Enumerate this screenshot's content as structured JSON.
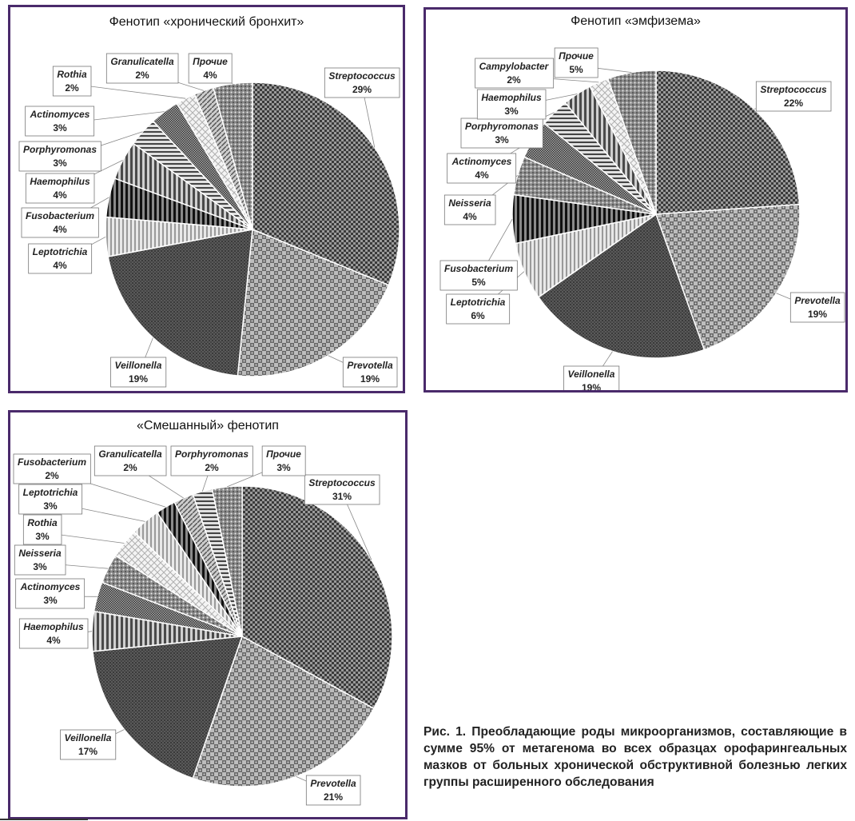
{
  "chart_data": [
    {
      "type": "pie",
      "title": "Фенотип «хронический бронхит»",
      "unit": "%",
      "slices": [
        {
          "label": "Streptococcus",
          "value": 29,
          "text": "29%"
        },
        {
          "label": "Prevotella",
          "value": 19,
          "text": "19%"
        },
        {
          "label": "Veillonella",
          "value": 19,
          "text": "19%"
        },
        {
          "label": "Leptotrichia",
          "value": 4,
          "text": "4%"
        },
        {
          "label": "Fusobacterium",
          "value": 4,
          "text": "4%"
        },
        {
          "label": "Haemophilus",
          "value": 4,
          "text": "4%"
        },
        {
          "label": "Porphyromonas",
          "value": 3,
          "text": "3%"
        },
        {
          "label": "Actinomyces",
          "value": 3,
          "text": "3%"
        },
        {
          "label": "Rothia",
          "value": 2,
          "text": "2%"
        },
        {
          "label": "Granulicatella",
          "value": 2,
          "text": "2%"
        },
        {
          "label": "Прочие",
          "value": 4,
          "text": "4%"
        }
      ]
    },
    {
      "type": "pie",
      "title": "Фенотип «эмфизема»",
      "unit": "%",
      "slices": [
        {
          "label": "Streptococcus",
          "value": 22,
          "text": "22%"
        },
        {
          "label": "Prevotella",
          "value": 19,
          "text": "19%"
        },
        {
          "label": "Veillonella",
          "value": 19,
          "text": "19%"
        },
        {
          "label": "Leptotrichia",
          "value": 6,
          "text": "6%"
        },
        {
          "label": "Fusobacterium",
          "value": 5,
          "text": "5%"
        },
        {
          "label": "Neisseria",
          "value": 4,
          "text": "4%"
        },
        {
          "label": "Actinomyces",
          "value": 4,
          "text": "4%"
        },
        {
          "label": "Porphyromonas",
          "value": 3,
          "text": "3%"
        },
        {
          "label": "Haemophilus",
          "value": 3,
          "text": "3%"
        },
        {
          "label": "Campylobacter",
          "value": 2,
          "text": "2%"
        },
        {
          "label": "Прочие",
          "value": 5,
          "text": "5%"
        }
      ]
    },
    {
      "type": "pie",
      "title": "«Смешанный» фенотип",
      "unit": "%",
      "slices": [
        {
          "label": "Streptococcus",
          "value": 31,
          "text": "31%"
        },
        {
          "label": "Prevotella",
          "value": 21,
          "text": "21%"
        },
        {
          "label": "Veillonella",
          "value": 17,
          "text": "17%"
        },
        {
          "label": "Haemophilus",
          "value": 4,
          "text": "4%"
        },
        {
          "label": "Actinomyces",
          "value": 3,
          "text": "3%"
        },
        {
          "label": "Neisseria",
          "value": 3,
          "text": "3%"
        },
        {
          "label": "Rothia",
          "value": 3,
          "text": "3%"
        },
        {
          "label": "Leptotrichia",
          "value": 3,
          "text": "3%"
        },
        {
          "label": "Fusobacterium",
          "value": 2,
          "text": "2%"
        },
        {
          "label": "Granulicatella",
          "value": 2,
          "text": "2%"
        },
        {
          "label": "Porphyromonas",
          "value": 2,
          "text": "2%"
        },
        {
          "label": "Прочие",
          "value": 3,
          "text": "3%"
        }
      ]
    }
  ],
  "caption": "Рис. 1. Преобладающие роды микроорганизмов, составляющие в сумме 95% от метагенома во всех образцах орофарингеальных мазков от больных хронической обструктивной болезнью легких группы расширенного обследования"
}
